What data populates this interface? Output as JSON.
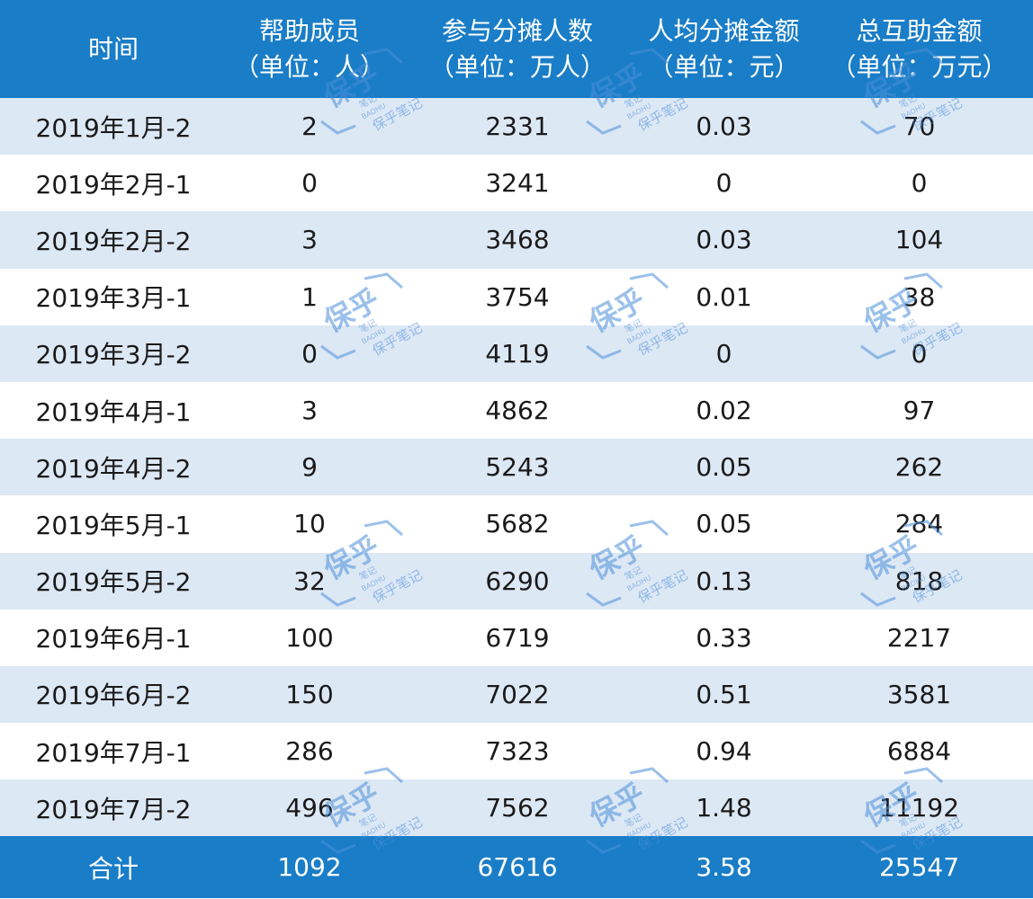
{
  "headers": [
    {
      "title": "时间",
      "unit": ""
    },
    {
      "title": "帮助成员",
      "unit": "（单位：人）"
    },
    {
      "title": "参与分摊人数",
      "unit": "（单位：万人）"
    },
    {
      "title": "人均分摊金额",
      "unit": "（单位：元）"
    },
    {
      "title": "总互助金额",
      "unit": "（单位：万元）"
    }
  ],
  "rows": [
    [
      "2019年1月-2",
      "2",
      "2331",
      "0.03",
      "70"
    ],
    [
      "2019年2月-1",
      "0",
      "3241",
      "0",
      "0"
    ],
    [
      "2019年2月-2",
      "3",
      "3468",
      "0.03",
      "104"
    ],
    [
      "2019年3月-1",
      "1",
      "3754",
      "0.01",
      "38"
    ],
    [
      "2019年3月-2",
      "0",
      "4119",
      "0",
      "0"
    ],
    [
      "2019年4月-1",
      "3",
      "4862",
      "0.02",
      "97"
    ],
    [
      "2019年4月-2",
      "9",
      "5243",
      "0.05",
      "262"
    ],
    [
      "2019年5月-1",
      "10",
      "5682",
      "0.05",
      "284"
    ],
    [
      "2019年5月-2",
      "32",
      "6290",
      "0.13",
      "818"
    ],
    [
      "2019年6月-1",
      "100",
      "6719",
      "0.33",
      "2217"
    ],
    [
      "2019年6月-2",
      "150",
      "7022",
      "0.51",
      "3581"
    ],
    [
      "2019年7月-1",
      "286",
      "7323",
      "0.94",
      "6884"
    ],
    [
      "2019年7月-2",
      "496",
      "7562",
      "1.48",
      "11192"
    ]
  ],
  "total": [
    "合计",
    "1092",
    "67616",
    "3.58",
    "25547"
  ],
  "watermark": {
    "logo_text": "保乎",
    "sub_text": "笔记",
    "latin_text": "BAOHU",
    "caption": "保乎笔记",
    "color": "#4a90d9"
  },
  "colors": {
    "header_bg": "#1a7dc7",
    "stripe": "#dde8f5"
  }
}
